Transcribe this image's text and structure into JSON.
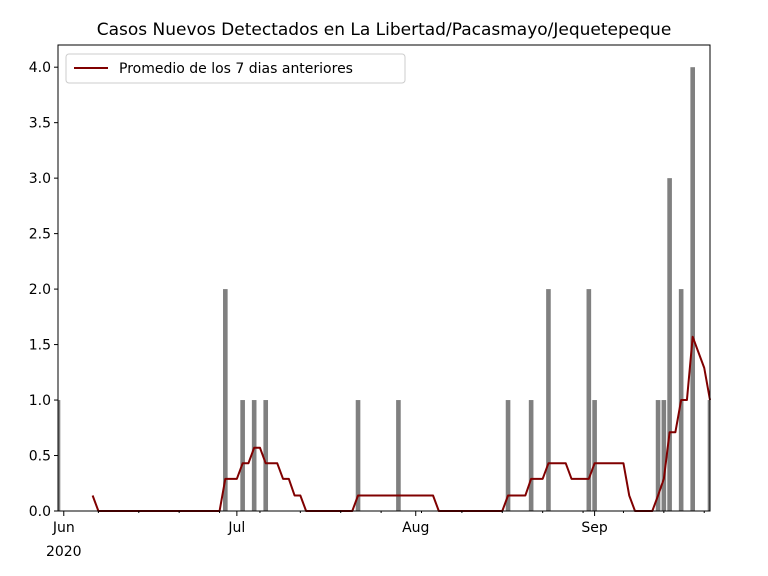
{
  "chart_data": {
    "type": "bar",
    "title": "Casos Nuevos Detectados en La Libertad/Pacasmayo/Jequetepeque",
    "xlabel": "",
    "ylabel": "",
    "x_range": [
      "2020-05-31",
      "2020-09-21"
    ],
    "ylim": [
      0,
      4.2
    ],
    "y_ticks": [
      "0.0",
      "0.5",
      "1.0",
      "1.5",
      "2.0",
      "2.5",
      "3.0",
      "3.5",
      "4.0"
    ],
    "y_tick_values": [
      0,
      0.5,
      1.0,
      1.5,
      2.0,
      2.5,
      3.0,
      3.5,
      4.0
    ],
    "x_ticks": [
      {
        "date": "2020-06-01",
        "label": "Jun",
        "sublabel": "2020"
      },
      {
        "date": "2020-07-01",
        "label": "Jul",
        "sublabel": ""
      },
      {
        "date": "2020-08-01",
        "label": "Aug",
        "sublabel": ""
      },
      {
        "date": "2020-09-01",
        "label": "Sep",
        "sublabel": ""
      }
    ],
    "grid": false,
    "legend_position": "top-left",
    "series": [
      {
        "type": "bar",
        "color": "#808080",
        "points": [
          [
            "2020-05-31",
            1
          ],
          [
            "2020-06-29",
            2
          ],
          [
            "2020-07-02",
            1
          ],
          [
            "2020-07-04",
            1
          ],
          [
            "2020-07-06",
            1
          ],
          [
            "2020-07-22",
            1
          ],
          [
            "2020-07-29",
            1
          ],
          [
            "2020-08-17",
            1
          ],
          [
            "2020-08-21",
            1
          ],
          [
            "2020-08-24",
            2
          ],
          [
            "2020-08-31",
            2
          ],
          [
            "2020-09-01",
            1
          ],
          [
            "2020-09-12",
            1
          ],
          [
            "2020-09-13",
            1
          ],
          [
            "2020-09-14",
            3
          ],
          [
            "2020-09-16",
            2
          ],
          [
            "2020-09-18",
            4
          ],
          [
            "2020-09-21",
            1
          ]
        ]
      },
      {
        "type": "line",
        "name": "Promedio de los 7 dias anteriores",
        "color": "#800000",
        "points": [
          [
            "2020-06-06",
            0.14
          ],
          [
            "2020-06-07",
            0.0
          ],
          [
            "2020-06-28",
            0.0
          ],
          [
            "2020-06-29",
            0.29
          ],
          [
            "2020-06-30",
            0.29
          ],
          [
            "2020-07-01",
            0.29
          ],
          [
            "2020-07-02",
            0.43
          ],
          [
            "2020-07-03",
            0.43
          ],
          [
            "2020-07-04",
            0.57
          ],
          [
            "2020-07-05",
            0.57
          ],
          [
            "2020-07-06",
            0.43
          ],
          [
            "2020-07-07",
            0.43
          ],
          [
            "2020-07-08",
            0.43
          ],
          [
            "2020-07-09",
            0.29
          ],
          [
            "2020-07-10",
            0.29
          ],
          [
            "2020-07-11",
            0.14
          ],
          [
            "2020-07-12",
            0.14
          ],
          [
            "2020-07-13",
            0.0
          ],
          [
            "2020-07-21",
            0.0
          ],
          [
            "2020-07-22",
            0.14
          ],
          [
            "2020-08-04",
            0.14
          ],
          [
            "2020-08-05",
            0.0
          ],
          [
            "2020-08-16",
            0.0
          ],
          [
            "2020-08-17",
            0.14
          ],
          [
            "2020-08-20",
            0.14
          ],
          [
            "2020-08-21",
            0.29
          ],
          [
            "2020-08-23",
            0.29
          ],
          [
            "2020-08-24",
            0.43
          ],
          [
            "2020-08-27",
            0.43
          ],
          [
            "2020-08-28",
            0.29
          ],
          [
            "2020-08-31",
            0.29
          ],
          [
            "2020-09-01",
            0.43
          ],
          [
            "2020-09-06",
            0.43
          ],
          [
            "2020-09-07",
            0.14
          ],
          [
            "2020-09-08",
            0.0
          ],
          [
            "2020-09-11",
            0.0
          ],
          [
            "2020-09-12",
            0.14
          ],
          [
            "2020-09-13",
            0.29
          ],
          [
            "2020-09-14",
            0.71
          ],
          [
            "2020-09-15",
            0.71
          ],
          [
            "2020-09-16",
            1.0
          ],
          [
            "2020-09-17",
            1.0
          ],
          [
            "2020-09-18",
            1.57
          ],
          [
            "2020-09-19",
            1.43
          ],
          [
            "2020-09-20",
            1.29
          ],
          [
            "2020-09-21",
            1.0
          ]
        ]
      }
    ]
  }
}
